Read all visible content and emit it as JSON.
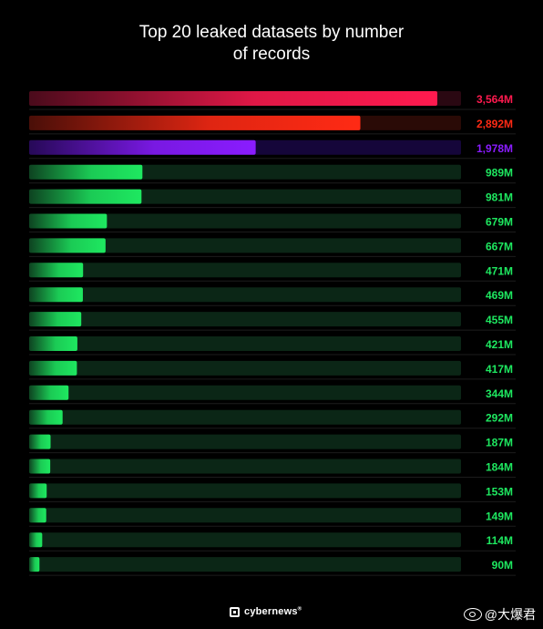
{
  "chart_data": {
    "type": "bar",
    "orientation": "horizontal",
    "title_lines": [
      "Top 20 leaked datasets by number",
      "of records"
    ],
    "max_value": 3564,
    "bars": [
      {
        "value": 3564,
        "label": "3,564M",
        "color": "#ff1a4f",
        "track": "#2a0812"
      },
      {
        "value": 2892,
        "label": "2,892M",
        "color": "#ff2a14",
        "track": "#2a0a06"
      },
      {
        "value": 1978,
        "label": "1,978M",
        "color": "#8a1cff",
        "track": "#15063a"
      },
      {
        "value": 989,
        "label": "989M",
        "color": "#1ee860",
        "track": "#0b2616"
      },
      {
        "value": 981,
        "label": "981M",
        "color": "#1ee860",
        "track": "#0b2616"
      },
      {
        "value": 679,
        "label": "679M",
        "color": "#1ee860",
        "track": "#0b2616"
      },
      {
        "value": 667,
        "label": "667M",
        "color": "#1ee860",
        "track": "#0b2616"
      },
      {
        "value": 471,
        "label": "471M",
        "color": "#1ee860",
        "track": "#0b2616"
      },
      {
        "value": 469,
        "label": "469M",
        "color": "#1ee860",
        "track": "#0b2616"
      },
      {
        "value": 455,
        "label": "455M",
        "color": "#1ee860",
        "track": "#0b2616"
      },
      {
        "value": 421,
        "label": "421M",
        "color": "#1ee860",
        "track": "#0b2616"
      },
      {
        "value": 417,
        "label": "417M",
        "color": "#1ee860",
        "track": "#0b2616"
      },
      {
        "value": 344,
        "label": "344M",
        "color": "#1ee860",
        "track": "#0b2616"
      },
      {
        "value": 292,
        "label": "292M",
        "color": "#1ee860",
        "track": "#0b2616"
      },
      {
        "value": 187,
        "label": "187M",
        "color": "#1ee860",
        "track": "#0b2616"
      },
      {
        "value": 184,
        "label": "184M",
        "color": "#1ee860",
        "track": "#0b2616"
      },
      {
        "value": 153,
        "label": "153M",
        "color": "#1ee860",
        "track": "#0b2616"
      },
      {
        "value": 149,
        "label": "149M",
        "color": "#1ee860",
        "track": "#0b2616"
      },
      {
        "value": 114,
        "label": "114M",
        "color": "#1ee860",
        "track": "#0b2616"
      },
      {
        "value": 90,
        "label": "90M",
        "color": "#1ee860",
        "track": "#0b2616"
      }
    ]
  },
  "footer": {
    "brand": "cybernews",
    "brand_mark": "®"
  },
  "watermark": {
    "text": "@大爆君",
    "icon": "weibo-icon"
  }
}
